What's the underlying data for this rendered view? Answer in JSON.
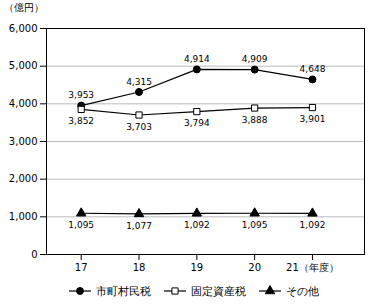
{
  "chart_data": {
    "type": "line",
    "ylabel": "（億円）",
    "x": [
      17,
      18,
      19,
      20,
      21
    ],
    "xlim": [
      16.4,
      21.9
    ],
    "xticks": [
      17,
      18,
      19,
      20,
      {
        "value": 21,
        "label": "21（年度）"
      }
    ],
    "ylim": [
      0,
      6000
    ],
    "yticks": [
      0,
      {
        "value": 1000,
        "label": "1,000"
      },
      {
        "value": 2000,
        "label": "2,000"
      },
      {
        "value": 3000,
        "label": "3,000"
      },
      {
        "value": 4000,
        "label": "4,000"
      },
      {
        "value": 5000,
        "label": "5,000"
      },
      {
        "value": 6000,
        "label": "6,000"
      }
    ],
    "grid": "y",
    "legend": "bottom",
    "data_labels": true,
    "series": [
      {
        "name": "市町村民税",
        "color": "#000000",
        "marker": "circle",
        "values": [
          3953,
          4315,
          4914,
          4909,
          4648
        ],
        "value_labels": [
          "3,953",
          "4,315",
          "4,914",
          "4,909",
          "4,648"
        ]
      },
      {
        "name": "固定資産税",
        "color": "#000000",
        "marker": "square-open",
        "values": [
          3852,
          3703,
          3794,
          3888,
          3901
        ],
        "value_labels": [
          "3,852",
          "3,703",
          "3,794",
          "3,888",
          "3,901"
        ]
      },
      {
        "name": "その他",
        "color": "#000000",
        "marker": "triangle",
        "values": [
          1095,
          1077,
          1092,
          1095,
          1092
        ],
        "value_labels": [
          "1,095",
          "1,077",
          "1,092",
          "1,095",
          "1,092"
        ]
      }
    ]
  }
}
